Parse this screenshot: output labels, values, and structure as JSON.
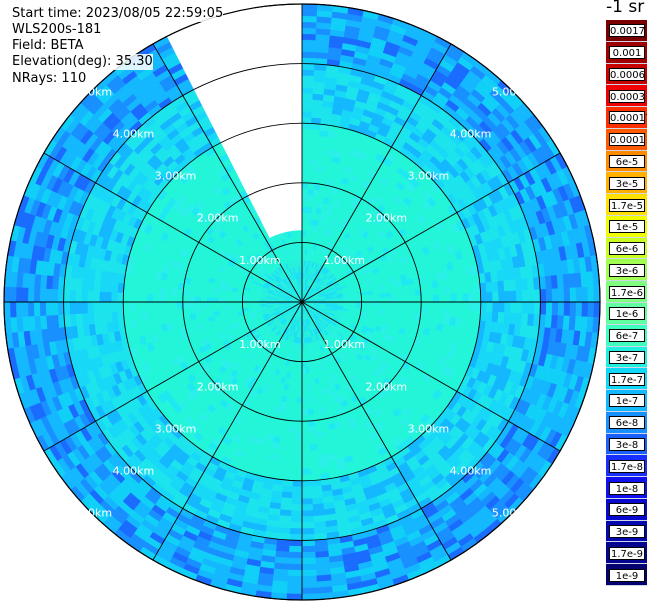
{
  "info": {
    "start_time": "Start time: 2023/08/05 22:59:05",
    "instrument": "WLS200s-181",
    "field": "Field: BETA",
    "elevation": "Elevation(deg): 35.30",
    "nrays": "NRays: 110"
  },
  "chart_data": {
    "type": "heatmap",
    "subtype": "polar-ppi",
    "range_labels": [
      "1.00km",
      "2.00km",
      "3.00km",
      "4.00km",
      "5.00km"
    ],
    "range_km": [
      1,
      2,
      3,
      4,
      5
    ],
    "max_range_km": 5,
    "spokes_deg": [
      0,
      30,
      60,
      90,
      120,
      150,
      180,
      210,
      240,
      270,
      300,
      330
    ],
    "gap_azimuth_deg": [
      333,
      359
    ],
    "nrays": 110,
    "colorbar": {
      "unit": "-1 sr",
      "labels": [
        "0.0017",
        "0.001",
        "0.0006",
        "0.0003",
        "0.00017",
        "0.0001",
        "6e-5",
        "3e-5",
        "1.7e-5",
        "1e-5",
        "6e-6",
        "3e-6",
        "1.7e-6",
        "1e-6",
        "6e-7",
        "3e-7",
        "1.7e-7",
        "1e-7",
        "6e-8",
        "3e-8",
        "1.7e-8",
        "1e-8",
        "6e-9",
        "3e-9",
        "1.7e-9",
        "1e-9"
      ],
      "colors": [
        "#7a0000",
        "#a00000",
        "#c80000",
        "#f00000",
        "#ff3000",
        "#ff5a00",
        "#ff8a00",
        "#ffb000",
        "#ffe000",
        "#f0ff00",
        "#c8ff20",
        "#a0ff50",
        "#80ff80",
        "#60ffa0",
        "#3fffc0",
        "#20f0e0",
        "#10d8f8",
        "#14b8ff",
        "#1890ff",
        "#1a60ff",
        "#1830ff",
        "#1010f0",
        "#0808d0",
        "#0606b0",
        "#040490",
        "#020270"
      ]
    }
  }
}
